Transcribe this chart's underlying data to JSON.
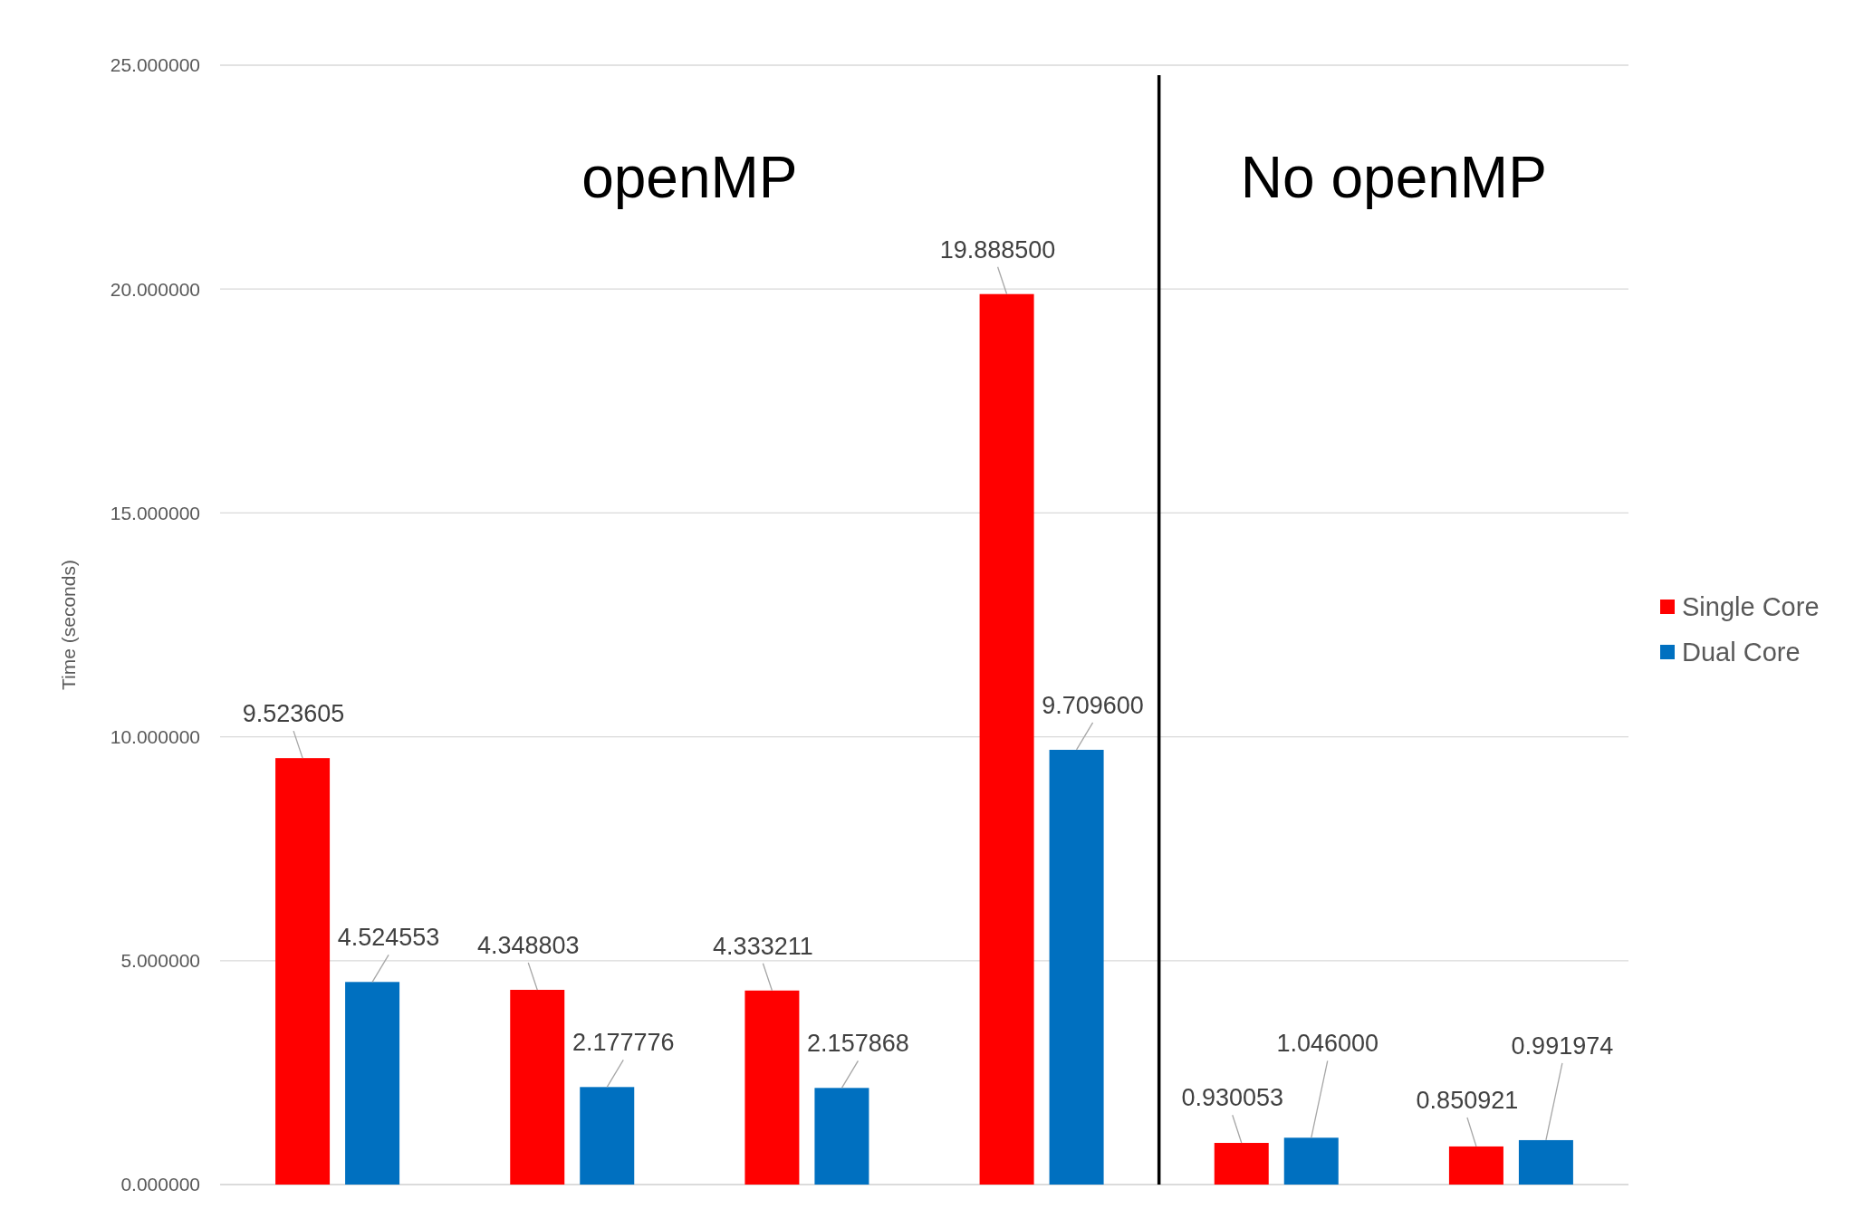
{
  "chart_data": {
    "type": "bar",
    "ylabel": "Time (seconds)",
    "categories": [
      null,
      null,
      null,
      null,
      null,
      null
    ],
    "series": [
      {
        "name": "Single Core",
        "color": "#ff0000",
        "values": [
          9.523605,
          4.348803,
          4.333211,
          19.8885,
          0.930053,
          0.850921
        ],
        "value_labels": [
          "9.523605",
          "4.348803",
          "4.333211",
          "19.888500",
          "0.930053",
          "0.850921"
        ]
      },
      {
        "name": "Dual Core",
        "color": "#0070c0",
        "values": [
          4.524553,
          2.177776,
          2.157868,
          9.7096,
          1.046,
          0.991974
        ],
        "value_labels": [
          "4.524553",
          "2.177776",
          "2.157868",
          "9.709600",
          "1.046000",
          "0.991974"
        ]
      }
    ],
    "ylim": [
      0,
      25
    ],
    "yticks": [
      {
        "value": 0,
        "label": "0.000000"
      },
      {
        "value": 5,
        "label": "5.000000"
      },
      {
        "value": 10,
        "label": "10.000000"
      },
      {
        "value": 15,
        "label": "15.000000"
      },
      {
        "value": 20,
        "label": "20.000000"
      },
      {
        "value": 25,
        "label": "25.000000"
      }
    ],
    "grid": "y",
    "legend": "right",
    "annotations": [
      "openMP",
      "No openMP"
    ]
  }
}
